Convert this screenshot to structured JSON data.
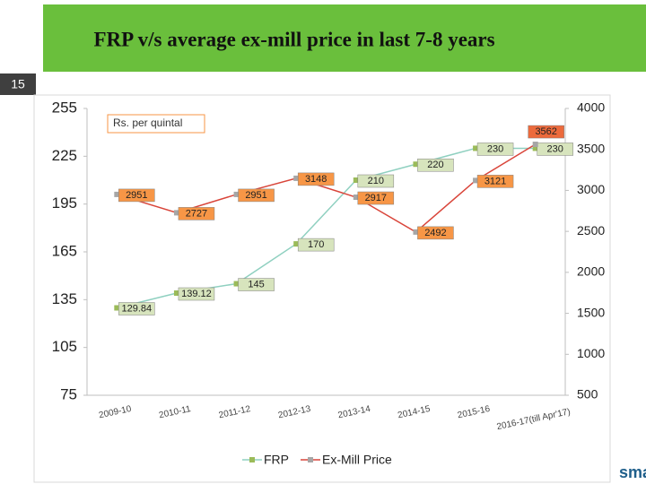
{
  "header": {
    "title": "FRP v/s average ex-mill price in last 7-8 years",
    "page_number": "15"
  },
  "logo": "sma",
  "chart_data": {
    "type": "line",
    "annotation": "Rs. per quintal",
    "categories": [
      "2009-10",
      "2010-11",
      "2011-12",
      "2012-13",
      "2013-14",
      "2014-15",
      "2015-16",
      "2016-17(till Apr'17)"
    ],
    "series": [
      {
        "name": "FRP",
        "color": "#8fd0c0",
        "marker_color": "#9bbb59",
        "label_fill": "#d7e4bd",
        "values": [
          129.84,
          139.12,
          145,
          170,
          210,
          220,
          230,
          230
        ]
      },
      {
        "name": "Ex-Mill Price",
        "color": "#d9453a",
        "marker_color": "#a6a6a6",
        "label_fill": "#f79646",
        "axis": "y2",
        "values": [
          2951,
          2727,
          2951,
          3148,
          2917,
          2492,
          3121,
          3562
        ]
      }
    ],
    "ylim": [
      75,
      255
    ],
    "yticks": [
      75,
      105,
      135,
      165,
      195,
      225,
      255
    ],
    "y2lim": [
      500,
      4000
    ],
    "y2ticks": [
      500,
      1000,
      1500,
      2000,
      2500,
      3000,
      3500,
      4000
    ],
    "legend": "bottom"
  }
}
